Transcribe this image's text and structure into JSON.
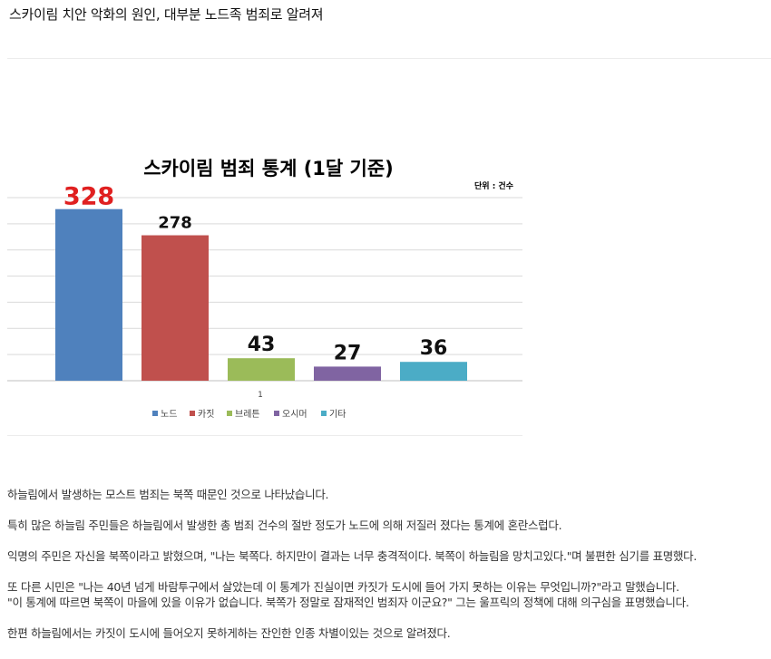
{
  "headline": "스카이림 치안 악화의 원인, 대부분 노드족 범죄로 알려져",
  "colors": {
    "bar_blue": "#4f81bd",
    "bar_red": "#c0504d",
    "bar_green": "#9bbb59",
    "bar_purple": "#8064a2",
    "bar_teal": "#4bacc6",
    "highlight_label": "#e02020",
    "gridline": "#d9d9d9"
  },
  "chart_data": {
    "type": "bar",
    "title": "스카이림 범죄 통계 (1달 기준)",
    "unit_note": "단위 : 건수",
    "categories": [
      "1"
    ],
    "series": [
      {
        "name": "노드",
        "values": [
          328
        ],
        "color": "#4f81bd"
      },
      {
        "name": "카짓",
        "values": [
          278
        ],
        "color": "#c0504d"
      },
      {
        "name": "브레튼",
        "values": [
          43
        ],
        "color": "#9bbb59"
      },
      {
        "name": "오시머",
        "values": [
          27
        ],
        "color": "#8064a2"
      },
      {
        "name": "기타",
        "values": [
          36
        ],
        "color": "#4bacc6"
      }
    ],
    "data_labels": [
      "328",
      "278",
      "43",
      "27",
      "36"
    ],
    "ylim": [
      0,
      350
    ],
    "grid": true,
    "legend": "bottom",
    "xlabel": "",
    "ylabel": ""
  },
  "article": {
    "p1": "하늘림에서 발생하는 모스트 범죄는 북쪽 때문인 것으로 나타났습니다.",
    "p2": "특히 많은 하늘림 주민들은 하늘림에서 발생한 총 범죄 건수의 절반 정도가 노드에 의해 저질러 졌다는 통계에 혼란스럽다.",
    "p3": "익명의 주민은 자신을 북쪽이라고 밝혔으며, \"나는 북쪽다. 하지만이 결과는 너무 충격적이다. 북쪽이 하늘림을 망치고있다.\"며 불편한 심기를 표명했다.",
    "p4a": "또 다른 시민은 \"나는 40년 넘게 바람투구에서 살았는데 이 통계가 진실이면 카짓가 도시에 들어 가지 못하는 이유는 무엇입니까?\"라고 말했습니다.",
    "p4b": "\"이 통계에 따르면 북쪽이 마을에 있을 이유가 없습니다. 북쪽가 정말로 잠재적인 범죄자 이군요?\" 그는 울프릭의 정책에 대해 의구심을 표명했습니다.",
    "p5": "한편 하늘림에서는 카짓이 도시에 들어오지 못하게하는 잔인한 인종 차별이있는 것으로 알려졌다."
  }
}
